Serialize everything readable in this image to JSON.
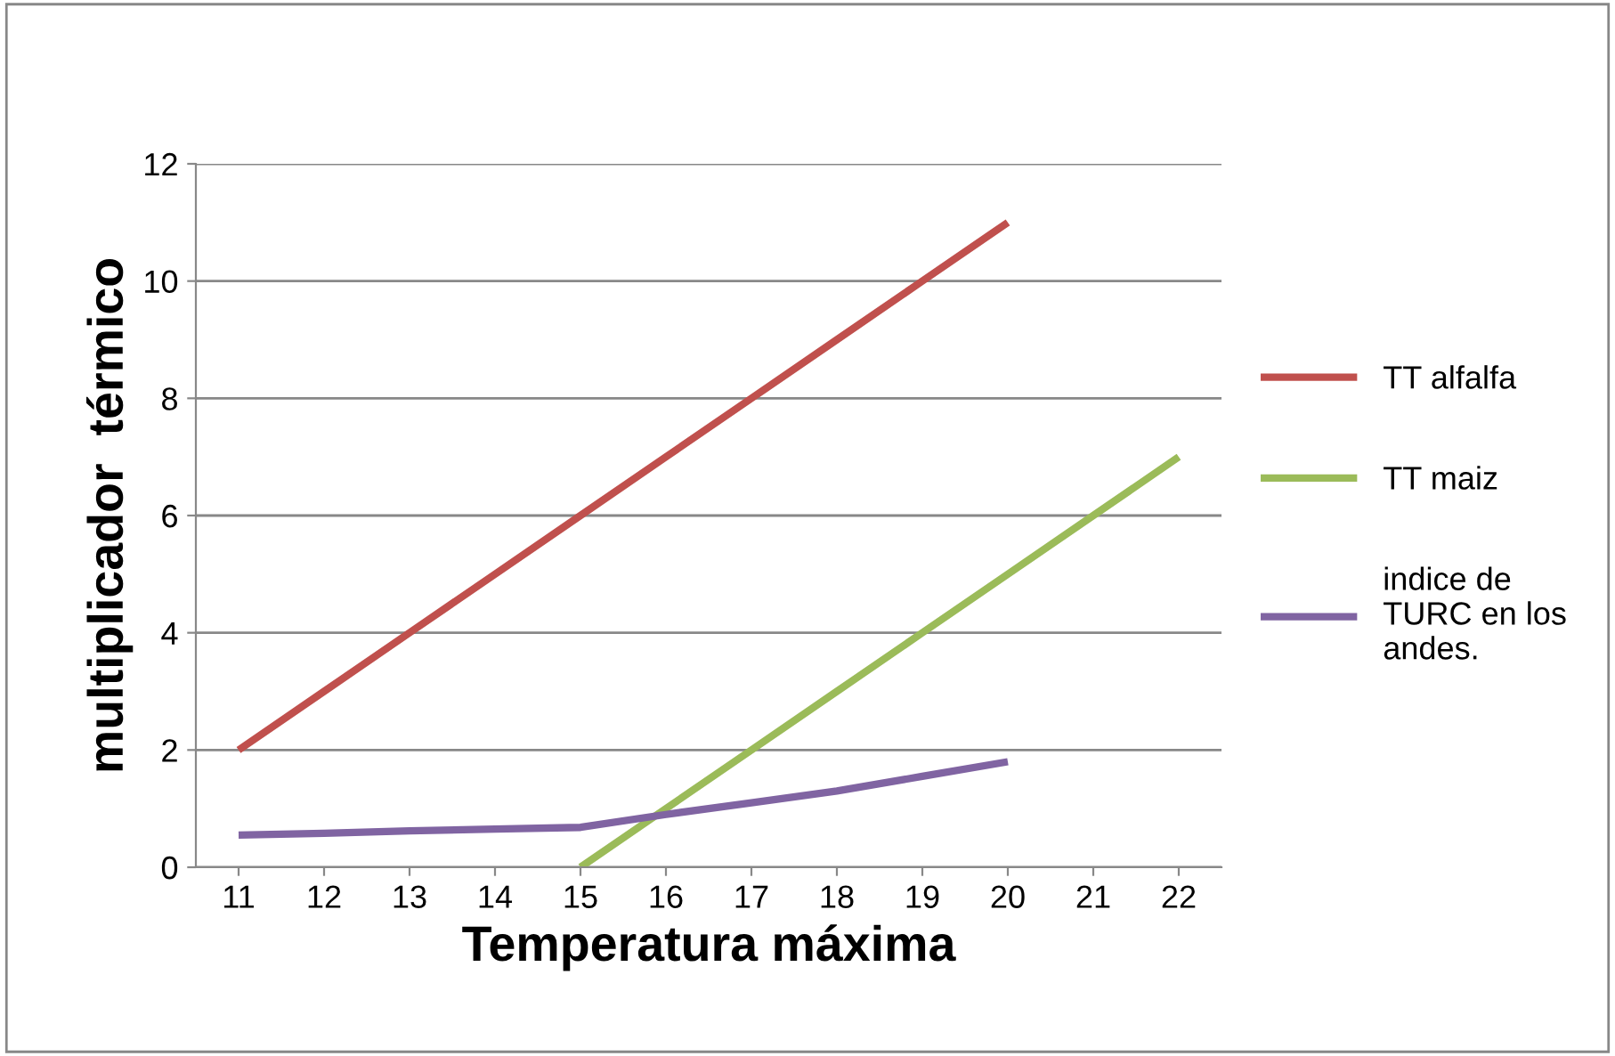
{
  "chart_data": {
    "type": "line",
    "xlabel": "Temperatura máxima",
    "ylabel": "multiplicador  térmico",
    "categories": [
      "11",
      "12",
      "13",
      "14",
      "15",
      "16",
      "17",
      "18",
      "19",
      "20",
      "21",
      "22"
    ],
    "series": [
      {
        "name": "TT alfalfa",
        "color": "#c0504d",
        "values": [
          2,
          3,
          4,
          5,
          6,
          7,
          8,
          9,
          10,
          11,
          null,
          null
        ]
      },
      {
        "name": "TT maiz",
        "color": "#9bbb59",
        "values": [
          null,
          null,
          null,
          null,
          0,
          1,
          2,
          3,
          4,
          5,
          6,
          7
        ]
      },
      {
        "name": " indice de TURC en los andes.",
        "color": "#8064a2",
        "values": [
          0.55,
          0.58,
          0.62,
          0.65,
          0.68,
          0.9,
          1.1,
          1.3,
          1.55,
          1.8,
          null,
          null
        ]
      }
    ],
    "ylim": [
      0,
      12
    ],
    "yticks": [
      0,
      2,
      4,
      6,
      8,
      10,
      12
    ],
    "grid": "y",
    "legend": "right",
    "marker": "none",
    "line_style": "solid"
  }
}
